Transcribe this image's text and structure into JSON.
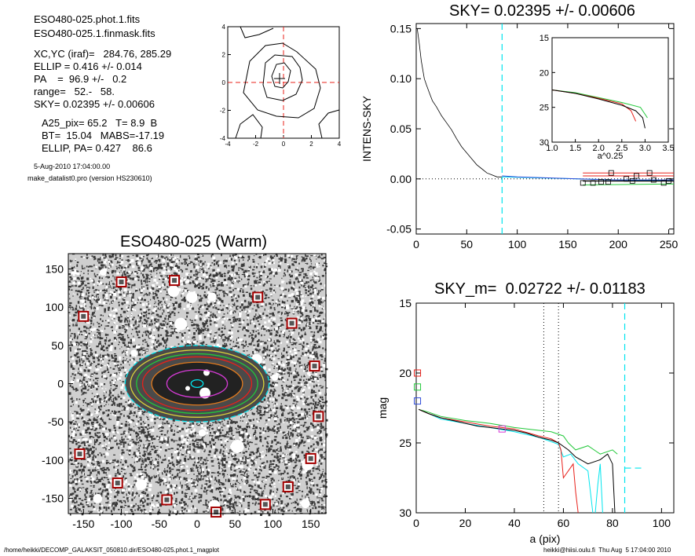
{
  "header": {
    "lines": [
      "ESO480-025.phot.1.fits",
      "ESO480-025.1.finmask.fits",
      "XC,YC (iraf)=   284.76, 285.29",
      "ELLIP = 0.416 +/- 0.014",
      "PA    =  96.9 +/-   0.2",
      "range=   52.-   58.",
      "SKY= 0.02395 +/- 0.00606",
      "A25_pix= 65.2   T= 8.9  B",
      "BT=  15.04   MABS=-17.19",
      "ELLIP, PA= 0.427    86.6"
    ],
    "date": "5-Aug-2010 17:04:00.00",
    "program": "make_datalist0.pro (version HS230610)"
  },
  "footer": {
    "left": "/home/heikki/DECOMP_GALAKSIT_050810.dir/ESO480-025.phot.1_magplot",
    "right": "heikki@hiisi.oulu.fi  Thu Aug  5 17:04:00 2010"
  },
  "colors": {
    "axis": "#000000",
    "cyan": "#00e5ee",
    "red": "#e8201a",
    "green": "#22c83a",
    "blue": "#2d4ad8",
    "magenta": "#d63bd6",
    "orange": "#e07a1e",
    "yellow": "#d8d33a",
    "pink": "#e53a8a"
  },
  "chart_data": [
    {
      "id": "contour",
      "type": "contour",
      "title": "",
      "xlim": [
        -4,
        4
      ],
      "ylim": [
        -4,
        4
      ],
      "xticks": [
        -4,
        -2,
        0,
        2,
        4
      ],
      "yticks": [
        -4,
        -2,
        0,
        2,
        4
      ],
      "center": [
        0,
        0
      ]
    },
    {
      "id": "sky",
      "type": "line",
      "title": "SKY= 0.02395 +/- 0.00606",
      "ylabel": "INTENS-SKY",
      "xlabel": "",
      "xlim": [
        0,
        255
      ],
      "ylim": [
        -0.055,
        0.155
      ],
      "xticks": [
        0,
        50,
        100,
        150,
        200,
        250
      ],
      "yticks": [
        -0.05,
        0.0,
        0.05,
        0.1,
        0.15
      ],
      "ytick_labels": [
        "-0.05",
        "0.00",
        "0.05",
        "0.10",
        "0.15"
      ],
      "vline_cyan": 85,
      "profile": [
        [
          1,
          0.15
        ],
        [
          3,
          0.135
        ],
        [
          5,
          0.118
        ],
        [
          8,
          0.1
        ],
        [
          10,
          0.094
        ],
        [
          13,
          0.086
        ],
        [
          16,
          0.078
        ],
        [
          20,
          0.072
        ],
        [
          25,
          0.063
        ],
        [
          30,
          0.056
        ],
        [
          35,
          0.049
        ],
        [
          40,
          0.04
        ],
        [
          45,
          0.032
        ],
        [
          50,
          0.026
        ],
        [
          55,
          0.02
        ],
        [
          60,
          0.014
        ],
        [
          65,
          0.01
        ],
        [
          70,
          0.006
        ],
        [
          75,
          0.004
        ],
        [
          80,
          0.002
        ],
        [
          85,
          0.002
        ]
      ],
      "sky_blue": [
        [
          85,
          0.003
        ],
        [
          100,
          0.002
        ],
        [
          130,
          0.001
        ],
        [
          160,
          0.0
        ],
        [
          200,
          -0.001
        ],
        [
          255,
          -0.001
        ]
      ],
      "sky_cyan": [
        [
          85,
          0.002
        ],
        [
          120,
          0.001
        ],
        [
          160,
          0.0
        ],
        [
          200,
          -0.001
        ],
        [
          255,
          -0.002
        ]
      ],
      "sky_green": [
        [
          165,
          -0.006
        ],
        [
          255,
          -0.005
        ]
      ],
      "sky_red": [
        [
          165,
          0.006
        ],
        [
          255,
          0.006
        ]
      ],
      "sky_red2": [
        [
          165,
          0.003
        ],
        [
          255,
          0.003
        ]
      ],
      "sky_black": [
        [
          165,
          -0.002
        ],
        [
          255,
          -0.002
        ]
      ],
      "squares": [
        [
          165,
          -0.004
        ],
        [
          175,
          -0.004
        ],
        [
          183,
          -0.003
        ],
        [
          190,
          -0.003
        ],
        [
          193,
          0.006
        ],
        [
          208,
          0.0
        ],
        [
          214,
          -0.002
        ],
        [
          218,
          0.003
        ],
        [
          231,
          0.006
        ],
        [
          235,
          -0.001
        ],
        [
          245,
          -0.004
        ],
        [
          250,
          -0.002
        ]
      ],
      "inset": {
        "xlabel": "a^0.25",
        "xlim": [
          1.0,
          3.5
        ],
        "ylim": [
          30,
          15
        ],
        "xticks": [
          1.0,
          1.5,
          2.0,
          2.5,
          3.0,
          3.5
        ],
        "xtick_labels": [
          "1.0",
          "1.5",
          "2.0",
          "2.5",
          "3.0",
          "3.5"
        ],
        "yticks": [
          15,
          20,
          25,
          30
        ],
        "black": [
          [
            1.0,
            22.5
          ],
          [
            1.5,
            23.0
          ],
          [
            2.0,
            23.8
          ],
          [
            2.5,
            24.7
          ],
          [
            2.8,
            25.5
          ],
          [
            2.95,
            26.5
          ],
          [
            3.0,
            28.0
          ]
        ],
        "red": [
          [
            1.0,
            22.5
          ],
          [
            1.5,
            23.0
          ],
          [
            2.0,
            23.7
          ],
          [
            2.5,
            24.5
          ],
          [
            2.7,
            25.5
          ],
          [
            2.8,
            27.0
          ]
        ],
        "green": [
          [
            1.0,
            22.5
          ],
          [
            1.5,
            22.9
          ],
          [
            2.0,
            23.6
          ],
          [
            2.5,
            24.3
          ],
          [
            2.9,
            25.0
          ],
          [
            3.0,
            26.0
          ],
          [
            3.05,
            26.5
          ]
        ]
      }
    },
    {
      "id": "image",
      "type": "image",
      "title": "ESO480-025 (Warm)",
      "xlim": [
        -170,
        170
      ],
      "ylim": [
        -170,
        170
      ],
      "xticks": [
        -150,
        -100,
        -50,
        0,
        50,
        100,
        150
      ],
      "yticks": [
        -150,
        -100,
        -50,
        0,
        50,
        100,
        150
      ],
      "markers": [
        [
          -150,
          88
        ],
        [
          -100,
          133
        ],
        [
          -30,
          135
        ],
        [
          80,
          113
        ],
        [
          125,
          79
        ],
        [
          155,
          23
        ],
        [
          160,
          -43
        ],
        [
          150,
          -98
        ],
        [
          120,
          -135
        ],
        [
          90,
          -158
        ],
        [
          25,
          -168
        ],
        [
          -40,
          -152
        ],
        [
          -105,
          -130
        ],
        [
          -155,
          -92
        ]
      ],
      "ellipses": [
        {
          "rx": 95,
          "ry": 50,
          "color": "cyan"
        },
        {
          "rx": 88,
          "ry": 44,
          "color": "yellow"
        },
        {
          "rx": 80,
          "ry": 39,
          "color": "green"
        },
        {
          "rx": 72,
          "ry": 35,
          "color": "red"
        },
        {
          "rx": 60,
          "ry": 28,
          "color": "orange"
        },
        {
          "rx": 40,
          "ry": 18,
          "color": "magenta"
        },
        {
          "rx": 8,
          "ry": 5,
          "color": "cyan"
        }
      ]
    },
    {
      "id": "mag",
      "type": "line",
      "title": "SKY_m=  0.02722 +/- 0.01183",
      "xlabel": "a (pix)",
      "ylabel": "mag",
      "xlim": [
        0,
        105
      ],
      "ylim": [
        30,
        15
      ],
      "xticks": [
        0,
        20,
        40,
        60,
        80,
        100
      ],
      "yticks": [
        15,
        20,
        25,
        30
      ],
      "vlines_dotted": [
        52,
        58
      ],
      "vline_cyan": 85,
      "hline_cyan": {
        "from": 85,
        "to": 92,
        "y": 26.8
      },
      "black": [
        [
          1,
          22.6
        ],
        [
          5,
          22.9
        ],
        [
          10,
          23.2
        ],
        [
          15,
          23.4
        ],
        [
          20,
          23.6
        ],
        [
          25,
          23.8
        ],
        [
          30,
          23.9
        ],
        [
          35,
          24.0
        ],
        [
          40,
          24.1
        ],
        [
          45,
          24.3
        ],
        [
          50,
          24.6
        ],
        [
          55,
          24.8
        ],
        [
          58,
          25.0
        ],
        [
          62,
          25.5
        ],
        [
          65,
          26.0
        ],
        [
          70,
          26.5
        ],
        [
          75,
          26.2
        ],
        [
          78,
          25.8
        ],
        [
          80,
          26.5
        ],
        [
          81,
          30
        ]
      ],
      "red": [
        [
          1,
          22.6
        ],
        [
          5,
          22.9
        ],
        [
          10,
          23.2
        ],
        [
          20,
          23.5
        ],
        [
          30,
          23.8
        ],
        [
          40,
          24.0
        ],
        [
          50,
          24.5
        ],
        [
          55,
          24.7
        ],
        [
          58,
          25.0
        ],
        [
          59,
          25.5
        ],
        [
          60,
          27.5
        ],
        [
          62,
          27.0
        ],
        [
          64,
          26.5
        ],
        [
          65,
          28.5
        ],
        [
          66,
          30
        ]
      ],
      "green": [
        [
          1,
          22.6
        ],
        [
          5,
          22.8
        ],
        [
          10,
          23.1
        ],
        [
          20,
          23.4
        ],
        [
          30,
          23.6
        ],
        [
          40,
          23.9
        ],
        [
          50,
          24.1
        ],
        [
          55,
          24.2
        ],
        [
          60,
          24.5
        ],
        [
          62,
          25.0
        ],
        [
          65,
          25.5
        ],
        [
          70,
          25.2
        ],
        [
          75,
          25.8
        ],
        [
          80,
          25.5
        ],
        [
          82,
          25.8
        ]
      ],
      "cyan": [
        [
          1,
          22.6
        ],
        [
          5,
          22.9
        ],
        [
          10,
          23.3
        ],
        [
          20,
          23.6
        ],
        [
          30,
          23.9
        ],
        [
          40,
          24.2
        ],
        [
          50,
          24.6
        ],
        [
          58,
          25.1
        ],
        [
          60,
          26.0
        ],
        [
          63,
          25.8
        ],
        [
          66,
          26.5
        ],
        [
          70,
          27.0
        ],
        [
          72,
          30
        ]
      ],
      "cyan2": [
        [
          73,
          30
        ],
        [
          74,
          28.0
        ],
        [
          75,
          26.5
        ],
        [
          76,
          30
        ]
      ],
      "squares": [
        {
          "x": 0.5,
          "y": 20.0,
          "color": "red"
        },
        {
          "x": 0.5,
          "y": 21.0,
          "color": "green"
        },
        {
          "x": 0.5,
          "y": 22.0,
          "color": "blue"
        },
        {
          "x": 35,
          "y": 24.0,
          "color": "magenta"
        }
      ]
    }
  ]
}
